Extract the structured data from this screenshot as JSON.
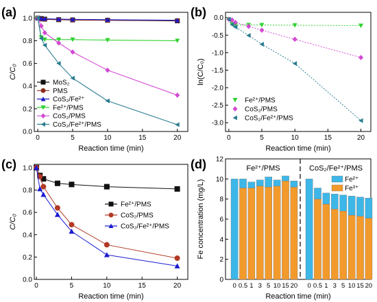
{
  "chart_data": [
    {
      "panel": "(a)",
      "type": "line",
      "xlabel": "Reaction time (min)",
      "ylabel": "C/C₀",
      "xlim": [
        -0.5,
        21.5
      ],
      "ylim": [
        0.0,
        1.05
      ],
      "xticks": [
        "0",
        "5",
        "10",
        "15",
        "20"
      ],
      "yticks": [
        "0.0",
        "0.2",
        "0.4",
        "0.6",
        "0.8",
        "1.0"
      ],
      "x": [
        0,
        0.5,
        1,
        3,
        5,
        10,
        20
      ],
      "series": [
        {
          "name": "MoS₂",
          "color": "#111111",
          "marker": "square",
          "values": [
            1.0,
            0.995,
            0.99,
            0.985,
            0.983,
            0.98,
            0.975
          ]
        },
        {
          "name": "PMS",
          "color": "#8b2e1a",
          "marker": "circle",
          "values": [
            1.0,
            0.99,
            0.988,
            0.985,
            0.982,
            0.98,
            0.977
          ]
        },
        {
          "name": "CoS₂/Fe²⁺",
          "color": "#1a1ac8",
          "marker": "triangle-up",
          "values": [
            1.0,
            0.995,
            0.993,
            0.99,
            0.988,
            0.985,
            0.98
          ]
        },
        {
          "name": "Fe²⁺/PMS",
          "color": "#2fd22f",
          "marker": "triangle-down",
          "values": [
            1.0,
            0.83,
            0.81,
            0.81,
            0.81,
            0.805,
            0.8
          ]
        },
        {
          "name": "CoS₂/PMS",
          "color": "#d24ad2",
          "marker": "diamond",
          "values": [
            1.0,
            0.93,
            0.87,
            0.78,
            0.7,
            0.54,
            0.32
          ]
        },
        {
          "name": "CoS₂/Fe²⁺/PMS",
          "color": "#2a7d90",
          "marker": "triangle-left",
          "values": [
            1.0,
            0.82,
            0.76,
            0.6,
            0.47,
            0.27,
            0.06
          ]
        }
      ],
      "legend": "bottom-left"
    },
    {
      "panel": "(b)",
      "type": "scatter",
      "xlabel": "Reaction time (min)",
      "ylabel": "ln(C/C₀)",
      "xlim": [
        -0.5,
        21.5
      ],
      "ylim": [
        -3.25,
        0.15
      ],
      "xticks": [
        "0",
        "5",
        "10",
        "15",
        "20"
      ],
      "yticks": [
        "0.0",
        "-0.5",
        "-1.0",
        "-1.5",
        "-2.0",
        "-2.5",
        "-3.0"
      ],
      "x": [
        0,
        0.5,
        1,
        3,
        5,
        10,
        20
      ],
      "series": [
        {
          "name": "Fe²⁺/PMS",
          "color": "#2fd22f",
          "marker": "triangle-down",
          "values": [
            -0.05,
            -0.19,
            -0.21,
            -0.21,
            -0.21,
            -0.22,
            -0.23
          ]
        },
        {
          "name": "CoS₂/PMS",
          "color": "#d24ad2",
          "marker": "diamond",
          "values": [
            -0.05,
            -0.07,
            -0.14,
            -0.25,
            -0.36,
            -0.62,
            -1.14
          ]
        },
        {
          "name": "CoS₂/Fe²⁺/PMS",
          "color": "#2a7d90",
          "marker": "triangle-left",
          "values": [
            -0.05,
            -0.2,
            -0.27,
            -0.51,
            -0.76,
            -1.31,
            -2.94
          ]
        }
      ],
      "legend": "bottom-left"
    },
    {
      "panel": "(c)",
      "type": "line",
      "xlabel": "Reaction time (min)",
      "ylabel": "C/C₀",
      "xlim": [
        -0.3,
        21.5
      ],
      "ylim": [
        0.0,
        1.03
      ],
      "xticks": [
        "0",
        "5",
        "10",
        "15",
        "20"
      ],
      "yticks": [
        "0.0",
        "0.2",
        "0.4",
        "0.6",
        "0.8",
        "1.0"
      ],
      "x": [
        0,
        0.5,
        1,
        3,
        5,
        10,
        20
      ],
      "series": [
        {
          "name": "Fe²⁺/PMS",
          "color": "#111111",
          "marker": "square",
          "values": [
            1.0,
            0.93,
            0.9,
            0.86,
            0.85,
            0.83,
            0.81
          ]
        },
        {
          "name": "CoS₂/PMS",
          "color": "#b23a25",
          "marker": "circle",
          "values": [
            1.0,
            0.92,
            0.83,
            0.64,
            0.49,
            0.31,
            0.19
          ]
        },
        {
          "name": "CoS₂/Fe²⁺/PMS",
          "color": "#1a1ad2",
          "marker": "triangle-up",
          "values": [
            1.0,
            0.81,
            0.76,
            0.58,
            0.43,
            0.22,
            0.12
          ]
        }
      ],
      "legend": "right"
    },
    {
      "panel": "(d)",
      "type": "bar",
      "stacked": true,
      "xlabel": "Reaction time (min)",
      "ylabel": "Fe concentration (mg/L)",
      "ylim": [
        0,
        12
      ],
      "yticks": [
        "0",
        "2",
        "4",
        "6",
        "8",
        "10",
        "12"
      ],
      "groups": [
        {
          "title": "Fe²⁺/PMS",
          "categories": [
            "0",
            "0.5",
            "1",
            "3",
            "5",
            "10",
            "15",
            "20"
          ],
          "fe3": [
            0,
            9.1,
            9.1,
            9.3,
            9.2,
            9.3,
            9.8,
            9.2
          ],
          "fe2": [
            10.0,
            0.9,
            0.6,
            0.6,
            1.0,
            0.6,
            0.5,
            0.6
          ]
        },
        {
          "title": "CoS₂/Fe²⁺/PMS",
          "categories": [
            "0",
            "0.5",
            "1",
            "3",
            "5",
            "10",
            "15",
            "20"
          ],
          "fe3": [
            0,
            8.0,
            7.5,
            7.0,
            6.8,
            6.4,
            6.3,
            6.1
          ],
          "fe2": [
            10.0,
            1.1,
            1.1,
            1.5,
            1.6,
            1.9,
            1.9,
            2.0
          ]
        }
      ],
      "series": [
        {
          "name": "Fe²⁺",
          "color": "#3db7e8"
        },
        {
          "name": "Fe³⁺",
          "color": "#f39a2c"
        }
      ],
      "legend": "top-right"
    }
  ]
}
